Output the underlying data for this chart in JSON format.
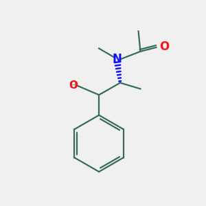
{
  "bg_color": "#f0f0f0",
  "bond_color": "#3a6b5a",
  "N_color": "#1010ff",
  "O_color": "#ff1010",
  "OH_color": "#888888",
  "figsize": [
    3.0,
    3.0
  ],
  "dpi": 100,
  "xlim": [
    0,
    10
  ],
  "ylim": [
    0,
    10
  ],
  "bond_lw": 1.6,
  "font_size_atom": 11,
  "font_size_H": 9
}
